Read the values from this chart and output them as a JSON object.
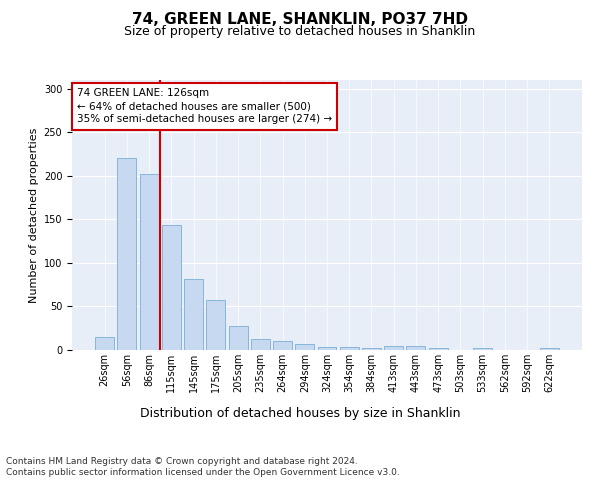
{
  "title": "74, GREEN LANE, SHANKLIN, PO37 7HD",
  "subtitle": "Size of property relative to detached houses in Shanklin",
  "xlabel": "Distribution of detached houses by size in Shanklin",
  "ylabel": "Number of detached properties",
  "categories": [
    "26sqm",
    "56sqm",
    "86sqm",
    "115sqm",
    "145sqm",
    "175sqm",
    "205sqm",
    "235sqm",
    "264sqm",
    "294sqm",
    "324sqm",
    "354sqm",
    "384sqm",
    "413sqm",
    "443sqm",
    "473sqm",
    "503sqm",
    "533sqm",
    "562sqm",
    "592sqm",
    "622sqm"
  ],
  "values": [
    15,
    220,
    202,
    144,
    82,
    57,
    27,
    13,
    10,
    7,
    4,
    3,
    2,
    5,
    5,
    2,
    0,
    2,
    0,
    0,
    2
  ],
  "bar_color": "#c6d9f0",
  "bar_edge_color": "#7aafd4",
  "marker_line_index": 3,
  "annotation_text": "74 GREEN LANE: 126sqm\n← 64% of detached houses are smaller (500)\n35% of semi-detached houses are larger (274) →",
  "annotation_box_color": "#ffffff",
  "annotation_box_edge": "#cc0000",
  "ylim": [
    0,
    310
  ],
  "yticks": [
    0,
    50,
    100,
    150,
    200,
    250,
    300
  ],
  "bg_color": "#e8eef7",
  "fig_bg": "#ffffff",
  "footer": "Contains HM Land Registry data © Crown copyright and database right 2024.\nContains public sector information licensed under the Open Government Licence v3.0.",
  "title_fontsize": 11,
  "subtitle_fontsize": 9,
  "xlabel_fontsize": 9,
  "ylabel_fontsize": 8,
  "tick_fontsize": 7,
  "annotation_fontsize": 7.5,
  "footer_fontsize": 6.5
}
